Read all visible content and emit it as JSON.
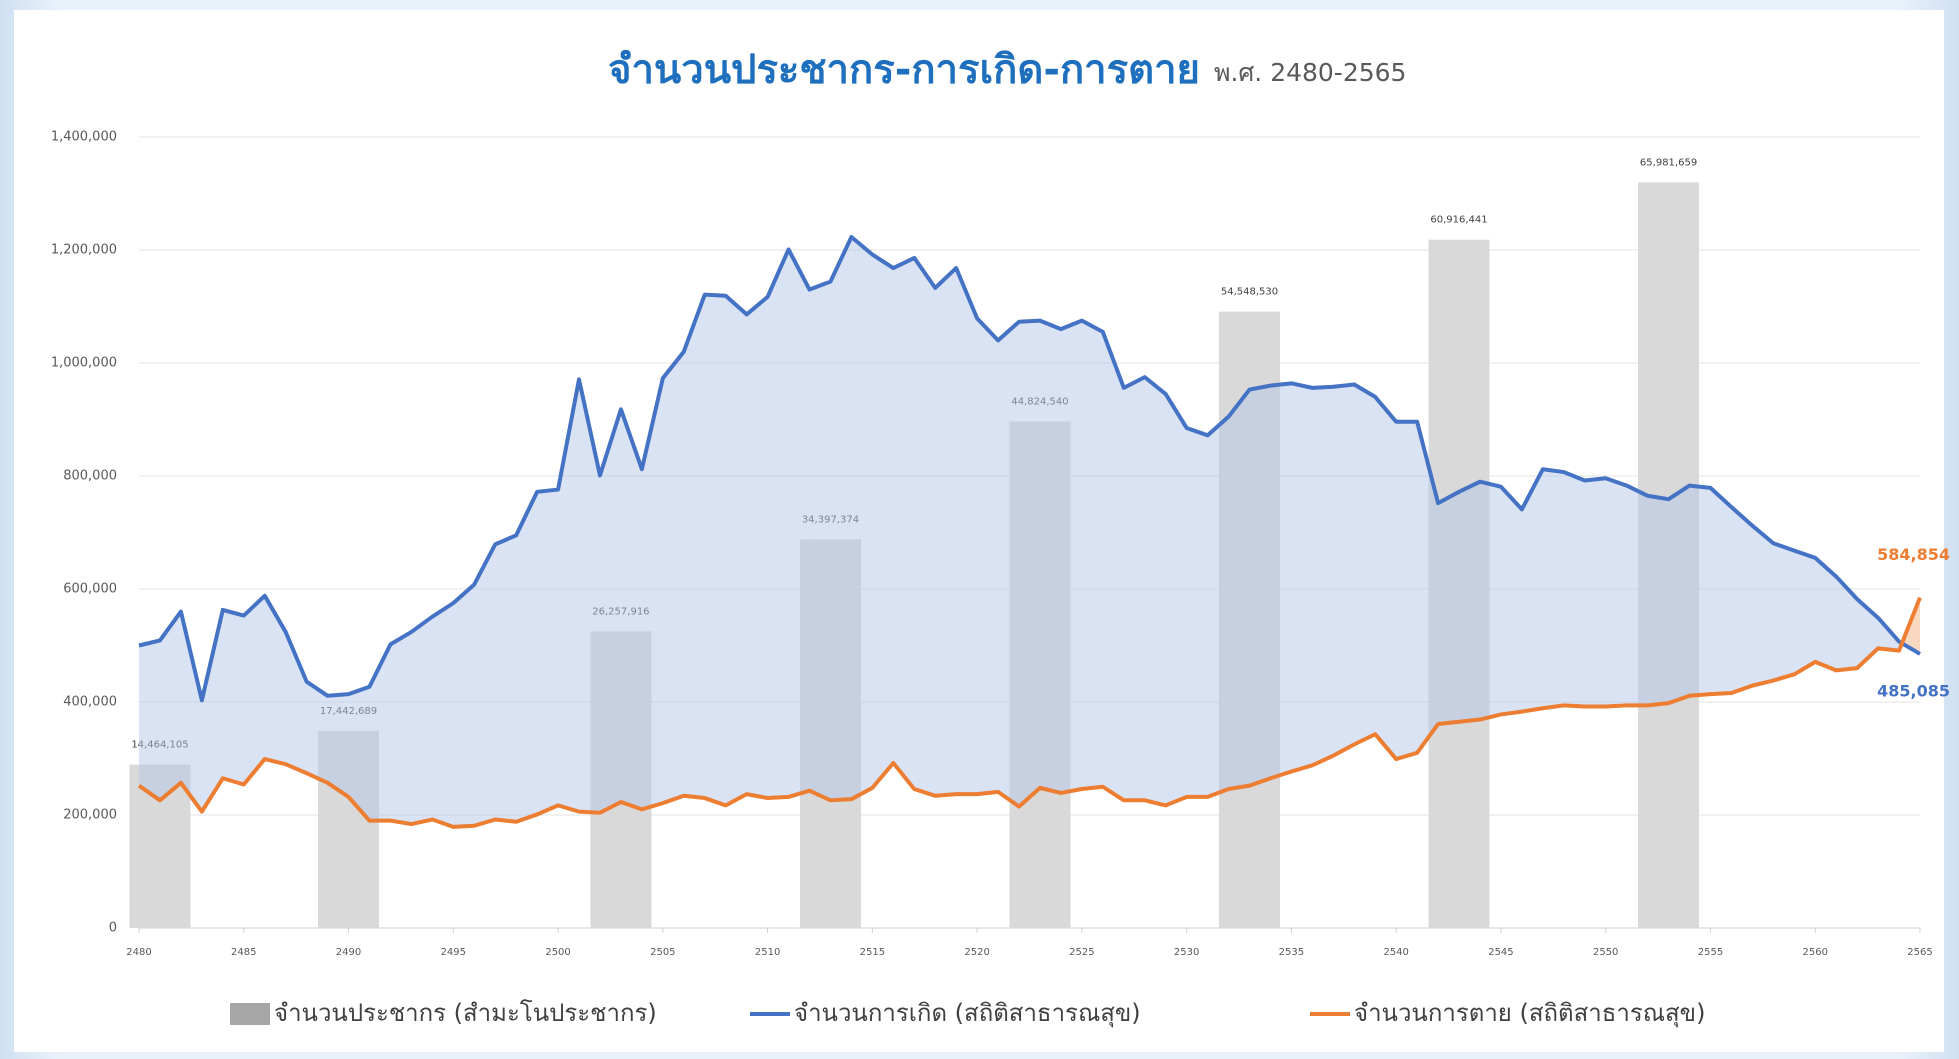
{
  "chart_data": {
    "type": "combo",
    "title": "จำนวนประชากร-การเกิด-การตาย",
    "subtitle": "พ.ศ. 2480-2565",
    "x": [
      2480,
      2481,
      2482,
      2483,
      2484,
      2485,
      2486,
      2487,
      2488,
      2489,
      2490,
      2491,
      2492,
      2493,
      2494,
      2495,
      2496,
      2497,
      2498,
      2499,
      2500,
      2501,
      2502,
      2503,
      2504,
      2505,
      2506,
      2507,
      2508,
      2509,
      2510,
      2511,
      2512,
      2513,
      2514,
      2515,
      2516,
      2517,
      2518,
      2519,
      2520,
      2521,
      2522,
      2523,
      2524,
      2525,
      2526,
      2527,
      2528,
      2529,
      2530,
      2531,
      2532,
      2533,
      2534,
      2535,
      2536,
      2537,
      2538,
      2539,
      2540,
      2541,
      2542,
      2543,
      2544,
      2545,
      2546,
      2547,
      2548,
      2549,
      2550,
      2551,
      2552,
      2553,
      2554,
      2555,
      2556,
      2557,
      2558,
      2559,
      2560,
      2561,
      2562,
      2563,
      2564,
      2565
    ],
    "xlim": [
      2480,
      2565
    ],
    "xticks": [
      2480,
      2485,
      2490,
      2495,
      2500,
      2505,
      2510,
      2515,
      2520,
      2525,
      2530,
      2535,
      2540,
      2545,
      2550,
      2555,
      2560,
      2565
    ],
    "ylim": [
      0,
      1400000
    ],
    "yticks": [
      0,
      {
        "value": 200000,
        "label": "200,000"
      },
      {
        "value": 400000,
        "label": "400,000"
      },
      {
        "value": 600000,
        "label": "600,000"
      },
      {
        "value": 800000,
        "label": "800,000"
      },
      {
        "value": 1000000,
        "label": "1,000,000"
      },
      {
        "value": 1200000,
        "label": "1,200,000"
      },
      {
        "value": 1400000,
        "label": "1,400,000"
      }
    ],
    "y2lim": [
      0,
      70000000
    ],
    "grid": true,
    "legend": "bottom",
    "series": [
      {
        "name": "จำนวนประชากร (สำมะโนประชากร)",
        "type": "bar",
        "axis": "y2",
        "color": "#d9d9d9",
        "x": [
          2481,
          2490,
          2503,
          2513,
          2523,
          2533,
          2543,
          2553
        ],
        "values": [
          14464105,
          17442689,
          26257916,
          34397374,
          44824540,
          54548530,
          60916441,
          65981659
        ],
        "value_labels": [
          "14,464,105",
          "17,442,689",
          "26,257,916",
          "34,397,374",
          "44,824,540",
          "54,548,530",
          "60,916,441",
          "65,981,659"
        ]
      },
      {
        "name": "จำนวนการเกิด (สถิติสาธารณสุข)",
        "type": "line",
        "color": "#4472c4",
        "values": [
          500000,
          509000,
          560000,
          403000,
          563000,
          553000,
          588000,
          524000,
          436000,
          411000,
          414000,
          427000,
          502000,
          524000,
          551000,
          575000,
          608000,
          679000,
          695000,
          772000,
          776000,
          971000,
          801000,
          918000,
          812000,
          973000,
          1020000,
          1121000,
          1119000,
          1086000,
          1117000,
          1201000,
          1130000,
          1144000,
          1223000,
          1192000,
          1168000,
          1186000,
          1133000,
          1168000,
          1079000,
          1040000,
          1073000,
          1075000,
          1060000,
          1075000,
          1055000,
          956000,
          975000,
          945000,
          885000,
          872000,
          905000,
          953000,
          960000,
          964000,
          956000,
          958000,
          962000,
          940000,
          896000,
          896000,
          752000,
          772000,
          790000,
          781000,
          741000,
          812000,
          807000,
          792000,
          796000,
          783000,
          765000,
          759000,
          783000,
          779000,
          745000,
          712000,
          681000,
          668000,
          655000,
          622000,
          582000,
          549000,
          507000,
          485085
        ],
        "value_labels": [
          null,
          null,
          null,
          null,
          null,
          null,
          null,
          null,
          null,
          null,
          null,
          null,
          null,
          null,
          null,
          null,
          null,
          null,
          null,
          null,
          null,
          null,
          null,
          null,
          null,
          null,
          null,
          null,
          null,
          null,
          null,
          null,
          null,
          null,
          null,
          null,
          null,
          null,
          null,
          null,
          null,
          null,
          null,
          null,
          null,
          null,
          null,
          null,
          null,
          null,
          null,
          null,
          null,
          null,
          null,
          null,
          null,
          null,
          null,
          null,
          null,
          null,
          null,
          null,
          null,
          null,
          null,
          null,
          null,
          null,
          null,
          null,
          null,
          null,
          null,
          null,
          null,
          null,
          null,
          null,
          null,
          null,
          null,
          null,
          null,
          "485,085"
        ]
      },
      {
        "name": "จำนวนการตาย (สถิติสาธารณสุข)",
        "type": "line",
        "color": "#ed7d31",
        "values": [
          252000,
          226000,
          257000,
          206000,
          265000,
          254000,
          299000,
          290000,
          274000,
          257000,
          232000,
          190000,
          190000,
          184000,
          192000,
          179000,
          181000,
          192000,
          188000,
          201000,
          217000,
          206000,
          204000,
          223000,
          210000,
          221000,
          234000,
          230000,
          217000,
          237000,
          230000,
          232000,
          243000,
          226000,
          228000,
          248000,
          292000,
          246000,
          234000,
          237000,
          237000,
          241000,
          215000,
          248000,
          239000,
          246000,
          250000,
          226000,
          226000,
          217000,
          232000,
          232000,
          246000,
          252000,
          265000,
          277000,
          288000,
          305000,
          325000,
          343000,
          299000,
          310000,
          361000,
          365000,
          369000,
          378000,
          383000,
          389000,
          394000,
          392000,
          392000,
          394000,
          394000,
          398000,
          411000,
          414000,
          416000,
          429000,
          438000,
          449000,
          471000,
          456000,
          460000,
          495000,
          491000,
          584854
        ],
        "value_labels": [
          null,
          null,
          null,
          null,
          null,
          null,
          null,
          null,
          null,
          null,
          null,
          null,
          null,
          null,
          null,
          null,
          null,
          null,
          null,
          null,
          null,
          null,
          null,
          null,
          null,
          null,
          null,
          null,
          null,
          null,
          null,
          null,
          null,
          null,
          null,
          null,
          null,
          null,
          null,
          null,
          null,
          null,
          null,
          null,
          null,
          null,
          null,
          null,
          null,
          null,
          null,
          null,
          null,
          null,
          null,
          null,
          null,
          null,
          null,
          null,
          null,
          null,
          null,
          null,
          null,
          null,
          null,
          null,
          null,
          null,
          null,
          null,
          null,
          null,
          null,
          null,
          null,
          null,
          null,
          null,
          null,
          null,
          null,
          null,
          null,
          "584,854"
        ]
      }
    ]
  }
}
